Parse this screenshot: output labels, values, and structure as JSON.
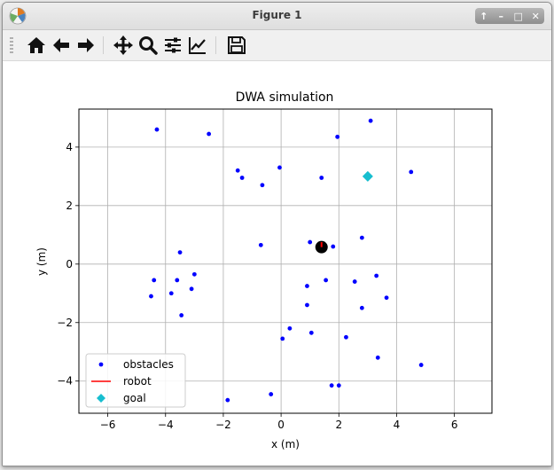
{
  "window": {
    "title": "Figure 1"
  },
  "toolbar": {
    "tools": [
      "home-icon",
      "back-arrow-icon",
      "forward-arrow-icon",
      "pan-icon",
      "zoom-icon",
      "configure-subplots-icon",
      "edit-axes-icon",
      "save-icon"
    ]
  },
  "chart_data": {
    "type": "scatter",
    "title": "DWA simulation",
    "xlabel": "x (m)",
    "ylabel": "y (m)",
    "xlim": [
      -7.0,
      7.3
    ],
    "ylim": [
      -5.1,
      5.3
    ],
    "xticks": [
      -6,
      -4,
      -2,
      0,
      2,
      4,
      6
    ],
    "yticks": [
      -4,
      -2,
      0,
      2,
      4
    ],
    "xtick_labels": [
      "−6",
      "−4",
      "−2",
      "0",
      "2",
      "4",
      "6"
    ],
    "ytick_labels": [
      "−4",
      "−2",
      "0",
      "2",
      "4"
    ],
    "grid": true,
    "legend_position": "bottom-left",
    "series": [
      {
        "name": "obstacles",
        "marker": "dot",
        "color": "#0000ff",
        "points": [
          [
            -4.3,
            4.6
          ],
          [
            -2.5,
            4.45
          ],
          [
            -1.5,
            3.2
          ],
          [
            -1.35,
            2.95
          ],
          [
            -0.65,
            2.7
          ],
          [
            -0.05,
            3.3
          ],
          [
            1.4,
            2.95
          ],
          [
            1.95,
            4.35
          ],
          [
            3.1,
            4.9
          ],
          [
            4.5,
            3.15
          ],
          [
            -0.7,
            0.65
          ],
          [
            1.0,
            0.75
          ],
          [
            1.8,
            0.6
          ],
          [
            2.8,
            0.9
          ],
          [
            -3.5,
            0.4
          ],
          [
            -3.0,
            -0.35
          ],
          [
            -4.4,
            -0.55
          ],
          [
            -3.6,
            -0.55
          ],
          [
            -3.1,
            -0.85
          ],
          [
            -3.8,
            -1.0
          ],
          [
            -4.5,
            -1.1
          ],
          [
            -3.45,
            -1.75
          ],
          [
            0.9,
            -0.75
          ],
          [
            1.55,
            -0.55
          ],
          [
            2.55,
            -0.6
          ],
          [
            3.3,
            -0.4
          ],
          [
            3.65,
            -1.15
          ],
          [
            0.9,
            -1.4
          ],
          [
            2.8,
            -1.5
          ],
          [
            0.3,
            -2.2
          ],
          [
            0.05,
            -2.55
          ],
          [
            1.05,
            -2.35
          ],
          [
            2.25,
            -2.5
          ],
          [
            3.35,
            -3.2
          ],
          [
            4.85,
            -3.45
          ],
          [
            1.75,
            -4.15
          ],
          [
            2.0,
            -4.15
          ],
          [
            -0.35,
            -4.45
          ],
          [
            -1.85,
            -4.65
          ]
        ]
      },
      {
        "name": "robot",
        "marker": "line",
        "color": "#ff0000",
        "points": [
          [
            1.4,
            0.58
          ],
          [
            1.4,
            0.75
          ]
        ]
      },
      {
        "name": "goal",
        "marker": "diamond",
        "color": "#17becf",
        "points": [
          [
            3.0,
            3.0
          ]
        ]
      }
    ],
    "robot_position": [
      1.4,
      0.58
    ]
  }
}
